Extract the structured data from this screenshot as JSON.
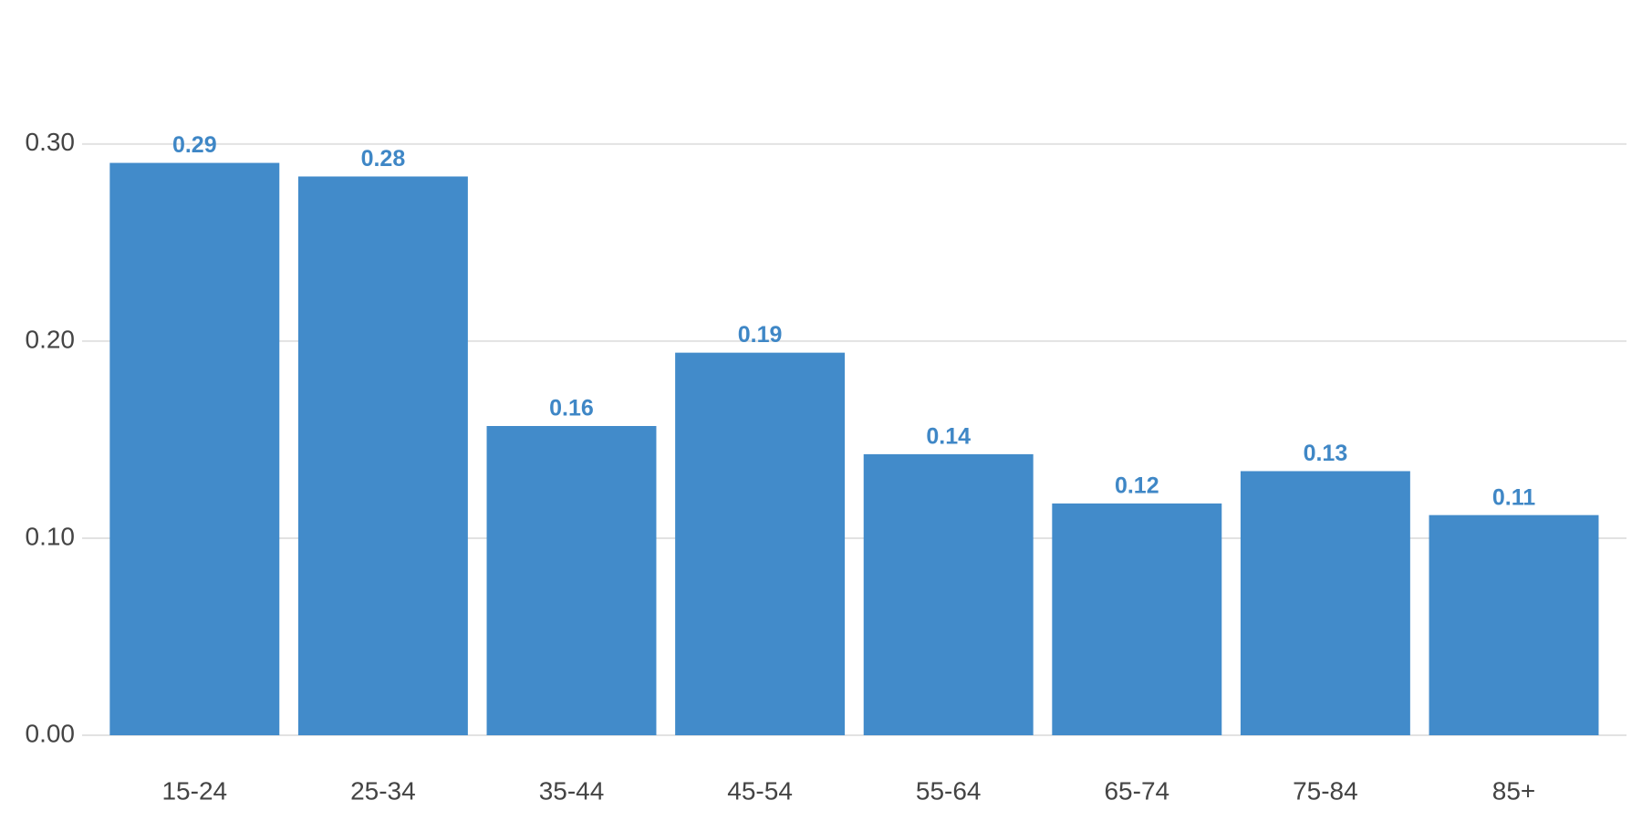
{
  "chart_data": {
    "type": "bar",
    "categories": [
      "15-24",
      "25-34",
      "35-44",
      "45-54",
      "55-64",
      "65-74",
      "75-84",
      "85+"
    ],
    "values": [
      0.2904,
      0.2835,
      0.1569,
      0.1941,
      0.1426,
      0.1176,
      0.134,
      0.1117
    ],
    "value_labels": [
      "0.29",
      "0.28",
      "0.16",
      "0.19",
      "0.14",
      "0.12",
      "0.13",
      "0.11"
    ],
    "color": "#428bca",
    "ylim": [
      0,
      0.33
    ],
    "yticks": [
      {
        "value": 0,
        "label": "0.00"
      },
      {
        "value": 0.1,
        "label": "0.10"
      },
      {
        "value": 0.2,
        "label": "0.20"
      },
      {
        "value": 0.3,
        "label": "0.30"
      }
    ],
    "grid": true
  }
}
